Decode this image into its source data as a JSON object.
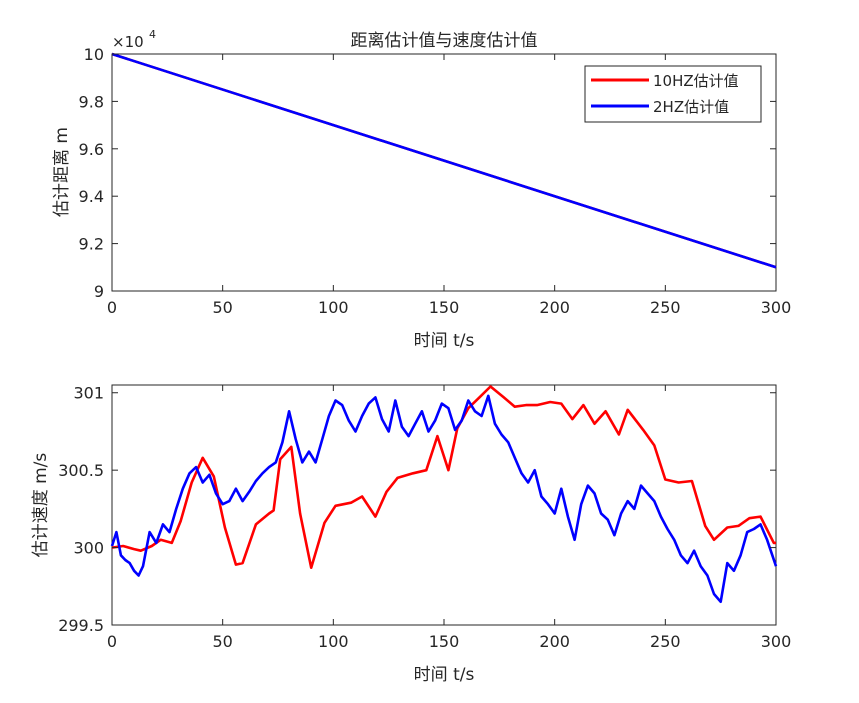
{
  "chart_data": [
    {
      "type": "line",
      "title": "距离估计值与速度估计值",
      "xlabel": "时间 t/s",
      "ylabel": "估计距离 m",
      "xlim": [
        0,
        300
      ],
      "ylim": [
        90000,
        100000
      ],
      "x_ticks": [
        "0",
        "50",
        "100",
        "150",
        "200",
        "250",
        "300"
      ],
      "y_ticks": [
        "9",
        "9.2",
        "9.4",
        "9.6",
        "9.8",
        "10"
      ],
      "y_exponent_label": "×10",
      "y_exponent_power": "4",
      "grid": false,
      "legend_position": "top-right",
      "series": [
        {
          "name": "10HZ估计值",
          "color": "#ff0000",
          "x": [
            0,
            300
          ],
          "values": [
            100000,
            91000
          ]
        },
        {
          "name": "2HZ估计值",
          "color": "#0000ff",
          "x": [
            0,
            300
          ],
          "values": [
            100000,
            91000
          ]
        }
      ]
    },
    {
      "type": "line",
      "title": "",
      "xlabel": "时间 t/s",
      "ylabel": "估计速度 m/s",
      "xlim": [
        0,
        300
      ],
      "ylim": [
        299.5,
        301.05
      ],
      "x_ticks": [
        "0",
        "50",
        "100",
        "150",
        "200",
        "250",
        "300"
      ],
      "y_ticks": [
        "299.5",
        "300",
        "300.5",
        "301"
      ],
      "grid": false,
      "series": [
        {
          "name": "10HZ估计值",
          "color": "#ff0000",
          "x": [
            0,
            5,
            10,
            13,
            18,
            22,
            27,
            31,
            36,
            41,
            46,
            51,
            56,
            59,
            65,
            71,
            73,
            76,
            81,
            85,
            90,
            96,
            101,
            108,
            113,
            119,
            124,
            129,
            136,
            142,
            147,
            152,
            156,
            161,
            166,
            171,
            177,
            182,
            187,
            192,
            198,
            203,
            208,
            213,
            218,
            223,
            229,
            233,
            240,
            245,
            250,
            256,
            262,
            268,
            272,
            278,
            283,
            288,
            293,
            299,
            300
          ],
          "values": [
            300.0,
            300.01,
            299.99,
            299.98,
            300.01,
            300.05,
            300.03,
            300.17,
            300.42,
            300.58,
            300.46,
            300.13,
            299.89,
            299.9,
            300.15,
            300.22,
            300.24,
            300.57,
            300.65,
            300.22,
            299.87,
            300.16,
            300.27,
            300.29,
            300.33,
            300.2,
            300.36,
            300.45,
            300.48,
            300.5,
            300.72,
            300.5,
            300.77,
            300.9,
            300.97,
            301.04,
            300.97,
            300.91,
            300.92,
            300.92,
            300.94,
            300.93,
            300.83,
            300.92,
            300.8,
            300.88,
            300.73,
            300.89,
            300.76,
            300.66,
            300.44,
            300.42,
            300.43,
            300.14,
            300.05,
            300.13,
            300.14,
            300.19,
            300.2,
            300.03,
            300.03
          ]
        },
        {
          "name": "2HZ估计值",
          "color": "#0000ff",
          "x": [
            0,
            2,
            4,
            6,
            8,
            10,
            12,
            14,
            17,
            20,
            23,
            26,
            29,
            32,
            35,
            38,
            41,
            44,
            47,
            50,
            53,
            56,
            59,
            62,
            65,
            68,
            71,
            74,
            77,
            80,
            83,
            86,
            89,
            92,
            95,
            98,
            101,
            104,
            107,
            110,
            113,
            116,
            119,
            122,
            125,
            128,
            131,
            134,
            137,
            140,
            143,
            146,
            149,
            152,
            155,
            158,
            161,
            164,
            167,
            170,
            173,
            176,
            179,
            182,
            185,
            188,
            191,
            194,
            197,
            200,
            203,
            206,
            209,
            212,
            215,
            218,
            221,
            224,
            227,
            230,
            233,
            236,
            239,
            242,
            245,
            248,
            251,
            254,
            257,
            260,
            263,
            266,
            269,
            272,
            275,
            278,
            281,
            284,
            287,
            290,
            293,
            296,
            300
          ],
          "values": [
            300.01,
            300.1,
            299.95,
            299.92,
            299.9,
            299.85,
            299.82,
            299.88,
            300.1,
            300.03,
            300.15,
            300.1,
            300.25,
            300.38,
            300.48,
            300.52,
            300.42,
            300.47,
            300.35,
            300.28,
            300.3,
            300.38,
            300.3,
            300.36,
            300.43,
            300.48,
            300.52,
            300.55,
            300.68,
            300.88,
            300.7,
            300.55,
            300.62,
            300.55,
            300.7,
            300.85,
            300.95,
            300.92,
            300.82,
            300.75,
            300.85,
            300.93,
            300.97,
            300.83,
            300.75,
            300.95,
            300.78,
            300.72,
            300.8,
            300.88,
            300.75,
            300.82,
            300.93,
            300.9,
            300.76,
            300.82,
            300.95,
            300.88,
            300.85,
            300.98,
            300.8,
            300.73,
            300.68,
            300.58,
            300.48,
            300.42,
            300.5,
            300.33,
            300.28,
            300.22,
            300.38,
            300.2,
            300.05,
            300.28,
            300.4,
            300.35,
            300.22,
            300.18,
            300.08,
            300.22,
            300.3,
            300.25,
            300.4,
            300.35,
            300.3,
            300.2,
            300.12,
            300.05,
            299.95,
            299.9,
            299.98,
            299.88,
            299.82,
            299.7,
            299.65,
            299.9,
            299.85,
            299.95,
            300.1,
            300.12,
            300.15,
            300.05,
            299.88
          ]
        }
      ]
    }
  ]
}
